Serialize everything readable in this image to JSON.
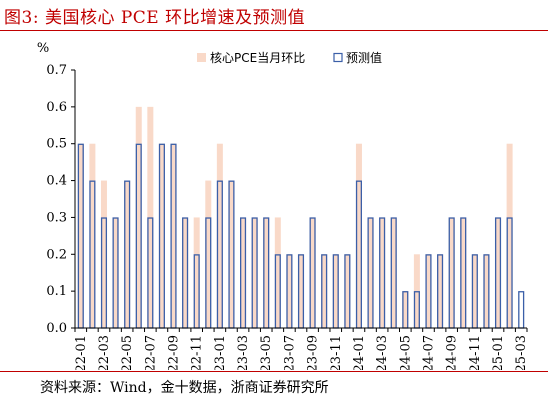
{
  "header": {
    "title": "图3:   美国核心 PCE 环比增速及预测值"
  },
  "footer": {
    "source": "资料来源：Wind，金十数据，浙商证券研究所"
  },
  "colors": {
    "actual": "#f9d9c8",
    "forecast_stroke": "#3b5fa8",
    "title": "#c00000"
  },
  "chart_data": {
    "type": "bar",
    "ylabel": "%",
    "ylim": [
      0,
      0.7
    ],
    "yticks": [
      "0.0",
      "0.1",
      "0.2",
      "0.3",
      "0.4",
      "0.5",
      "0.6",
      "0.7"
    ],
    "grid": false,
    "legend_position": "top-right",
    "categories": [
      "22-01",
      "22-02",
      "22-03",
      "22-04",
      "22-05",
      "22-06",
      "22-07",
      "22-08",
      "22-09",
      "22-10",
      "22-11",
      "22-12",
      "23-01",
      "23-02",
      "23-03",
      "23-04",
      "23-05",
      "23-06",
      "23-07",
      "23-08",
      "23-09",
      "23-10",
      "23-11",
      "23-12",
      "24-01",
      "24-02",
      "24-03",
      "24-04",
      "24-05",
      "24-06",
      "24-07",
      "24-08",
      "24-09",
      "24-10",
      "24-11",
      "24-12",
      "25-01",
      "25-02",
      "25-03"
    ],
    "xtick_labels": [
      "22-01",
      "22-03",
      "22-05",
      "22-07",
      "22-09",
      "22-11",
      "23-01",
      "23-03",
      "23-05",
      "23-07",
      "23-09",
      "23-11",
      "24-01",
      "24-03",
      "24-05",
      "24-07",
      "24-09",
      "24-11",
      "25-01",
      "25-03"
    ],
    "series": [
      {
        "name": "核心PCE当月环比",
        "style": "filled",
        "values": [
          0.5,
          0.5,
          0.4,
          0.3,
          0.4,
          0.6,
          0.6,
          0.5,
          0.5,
          0.3,
          0.3,
          0.4,
          0.5,
          0.4,
          0.3,
          0.3,
          0.3,
          0.3,
          0.2,
          0.2,
          0.3,
          0.2,
          0.2,
          0.2,
          0.5,
          0.3,
          0.3,
          0.3,
          0.1,
          0.2,
          0.2,
          0.2,
          0.3,
          0.3,
          0.2,
          0.2,
          0.3,
          0.5,
          null
        ]
      },
      {
        "name": "预测值",
        "style": "outline",
        "values": [
          0.5,
          0.4,
          0.3,
          0.3,
          0.4,
          0.5,
          0.3,
          0.5,
          0.5,
          0.3,
          0.2,
          0.3,
          0.4,
          0.4,
          0.3,
          0.3,
          0.3,
          0.2,
          0.2,
          0.2,
          0.3,
          0.2,
          0.2,
          0.2,
          0.4,
          0.3,
          0.3,
          0.3,
          0.1,
          0.1,
          0.2,
          0.2,
          0.3,
          0.3,
          0.2,
          0.2,
          0.3,
          0.3,
          0.1
        ]
      }
    ]
  }
}
